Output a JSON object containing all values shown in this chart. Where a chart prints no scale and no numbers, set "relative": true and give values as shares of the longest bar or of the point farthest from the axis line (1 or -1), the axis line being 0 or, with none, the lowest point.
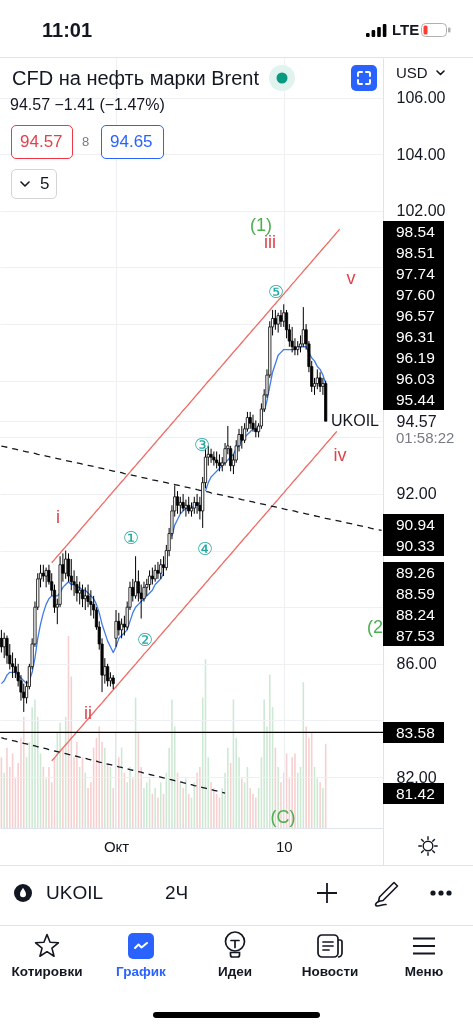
{
  "chart_data": [
    {
      "type": "candlestick",
      "title": "CFD на нефть марки Brent",
      "subtitle": "94.57 −1.41 (−1.47%)",
      "ylabel": "USD",
      "color": "#000000",
      "categories": [
        null,
        null,
        null,
        null,
        null,
        null,
        null,
        null,
        null,
        null,
        null,
        null,
        null,
        null,
        null,
        null,
        null,
        null,
        null,
        null,
        null,
        null,
        null,
        null,
        null,
        null,
        null,
        null,
        null,
        null,
        null,
        null,
        null,
        null,
        null,
        null,
        null,
        null,
        null,
        null,
        null,
        "Окт",
        null,
        null,
        null,
        null,
        null,
        null,
        null,
        null,
        null,
        null,
        null,
        null,
        null,
        null,
        null,
        null,
        null,
        null,
        null,
        null,
        null,
        null,
        null,
        null,
        null,
        null,
        null,
        null,
        null,
        null,
        null,
        null,
        null,
        null,
        null,
        null,
        null,
        null,
        null,
        null,
        null,
        null,
        null,
        null,
        null,
        null,
        null,
        null,
        null,
        null,
        null,
        null,
        null,
        null,
        null,
        null,
        null,
        null,
        null,
        "10",
        null,
        null,
        null,
        null,
        null,
        null,
        null,
        null,
        null,
        null,
        null,
        null,
        null,
        null,
        null,
        null,
        null,
        null,
        null,
        null,
        null,
        null,
        null,
        null,
        null,
        null,
        null,
        null,
        null,
        null,
        null,
        null,
        null,
        null,
        null
      ],
      "ohlc": [
        [
          86.9,
          87.2,
          86.4,
          86.6
        ],
        [
          86.6,
          87.1,
          86.2,
          86.9
        ],
        [
          86.9,
          87.0,
          86.0,
          86.3
        ],
        [
          86.3,
          86.7,
          85.8,
          86.0
        ],
        [
          86.0,
          86.4,
          85.5,
          85.9
        ],
        [
          85.9,
          86.2,
          85.5,
          85.7
        ],
        [
          85.7,
          86.0,
          85.2,
          85.4
        ],
        [
          85.4,
          85.6,
          84.7,
          85.0
        ],
        [
          85.0,
          85.3,
          84.3,
          84.8
        ],
        [
          84.8,
          85.4,
          84.6,
          85.2
        ],
        [
          85.2,
          86.0,
          85.1,
          85.9
        ],
        [
          85.9,
          86.9,
          85.8,
          86.7
        ],
        [
          86.7,
          88.2,
          86.6,
          88.0
        ],
        [
          88.0,
          89.2,
          87.9,
          89.0
        ],
        [
          89.0,
          89.5,
          88.7,
          89.2
        ],
        [
          89.2,
          89.5,
          88.9,
          89.1
        ],
        [
          89.1,
          89.4,
          88.7,
          89.3
        ],
        [
          89.3,
          89.5,
          88.8,
          88.9
        ],
        [
          88.9,
          89.2,
          88.4,
          88.6
        ],
        [
          88.6,
          88.8,
          87.8,
          88.0
        ],
        [
          88.0,
          88.3,
          87.4,
          88.1
        ],
        [
          88.1,
          89.8,
          88.0,
          89.5
        ],
        [
          89.5,
          89.9,
          88.9,
          89.2
        ],
        [
          89.2,
          90.0,
          89.0,
          89.7
        ],
        [
          89.7,
          89.9,
          88.9,
          89.1
        ],
        [
          89.1,
          89.7,
          88.6,
          88.9
        ],
        [
          88.9,
          89.3,
          88.4,
          88.8
        ],
        [
          88.8,
          89.1,
          88.2,
          88.5
        ],
        [
          88.5,
          88.9,
          88.1,
          88.6
        ],
        [
          88.6,
          88.8,
          88.0,
          88.3
        ],
        [
          88.3,
          88.7,
          87.9,
          88.4
        ],
        [
          88.4,
          88.8,
          88.0,
          88.2
        ],
        [
          88.2,
          88.6,
          87.7,
          88.1
        ],
        [
          88.1,
          88.4,
          87.6,
          87.9
        ],
        [
          87.9,
          88.0,
          87.2,
          87.3
        ],
        [
          87.3,
          87.5,
          86.5,
          86.7
        ],
        [
          86.7,
          86.9,
          85.0,
          85.6
        ],
        [
          85.6,
          86.2,
          85.3,
          85.9
        ],
        [
          85.9,
          86.0,
          85.2,
          85.4
        ],
        [
          85.4,
          85.7,
          85.2,
          85.5
        ],
        [
          85.5,
          85.6,
          85.1,
          85.3
        ],
        [
          86.9,
          87.9,
          86.6,
          87.5
        ],
        [
          87.5,
          87.8,
          87.0,
          87.2
        ],
        [
          87.2,
          87.6,
          86.9,
          87.4
        ],
        [
          87.4,
          87.7,
          87.0,
          87.3
        ],
        [
          87.3,
          88.2,
          87.2,
          88.0
        ],
        [
          88.0,
          88.9,
          87.9,
          88.7
        ],
        [
          88.7,
          89.0,
          88.2,
          88.4
        ],
        [
          88.4,
          89.8,
          88.3,
          88.9
        ],
        [
          88.9,
          89.3,
          88.2,
          88.5
        ],
        [
          88.5,
          88.8,
          87.6,
          88.3
        ],
        [
          88.3,
          88.9,
          88.2,
          88.7
        ],
        [
          88.7,
          89.0,
          88.4,
          88.8
        ],
        [
          88.8,
          89.3,
          88.6,
          89.1
        ],
        [
          89.1,
          89.4,
          88.8,
          89.0
        ],
        [
          89.0,
          89.5,
          88.9,
          89.3
        ],
        [
          89.3,
          89.6,
          89.0,
          89.2
        ],
        [
          89.2,
          89.7,
          89.0,
          89.5
        ],
        [
          89.5,
          89.8,
          89.1,
          89.4
        ],
        [
          89.4,
          90.2,
          89.3,
          90.0
        ],
        [
          90.0,
          90.8,
          89.8,
          90.6
        ],
        [
          90.6,
          91.6,
          90.4,
          91.4
        ],
        [
          91.4,
          92.3,
          91.2,
          91.9
        ],
        [
          91.9,
          92.1,
          91.3,
          91.6
        ],
        [
          91.6,
          91.9,
          91.3,
          91.7
        ],
        [
          91.7,
          92.0,
          91.4,
          91.5
        ],
        [
          91.5,
          91.8,
          91.2,
          91.6
        ],
        [
          91.6,
          91.9,
          91.3,
          91.4
        ],
        [
          91.4,
          91.7,
          91.2,
          91.5
        ],
        [
          91.5,
          91.9,
          91.3,
          91.7
        ],
        [
          91.7,
          92.0,
          91.3,
          91.6
        ],
        [
          91.6,
          91.9,
          91.1,
          91.4
        ],
        [
          91.4,
          92.6,
          90.8,
          92.4
        ],
        [
          92.4,
          93.6,
          92.2,
          93.3
        ],
        [
          93.3,
          93.7,
          93.0,
          93.4
        ],
        [
          93.4,
          93.6,
          93.1,
          93.3
        ],
        [
          93.3,
          93.5,
          93.0,
          93.2
        ],
        [
          93.2,
          93.5,
          92.9,
          93.1
        ],
        [
          93.1,
          93.4,
          92.8,
          93.0
        ],
        [
          93.0,
          93.3,
          92.8,
          93.1
        ],
        [
          93.1,
          93.8,
          93.0,
          93.6
        ],
        [
          93.6,
          94.4,
          93.4,
          93.7
        ],
        [
          93.6,
          93.7,
          92.8,
          93.0
        ],
        [
          93.0,
          93.4,
          92.7,
          93.2
        ],
        [
          93.2,
          93.9,
          93.1,
          93.7
        ],
        [
          93.7,
          94.3,
          93.5,
          94.1
        ],
        [
          94.1,
          94.4,
          93.6,
          93.9
        ],
        [
          93.9,
          94.5,
          93.8,
          94.3
        ],
        [
          94.3,
          94.9,
          94.2,
          94.7
        ],
        [
          94.7,
          94.9,
          94.3,
          94.5
        ],
        [
          94.5,
          94.8,
          94.2,
          94.3
        ],
        [
          94.3,
          94.6,
          94.0,
          94.2
        ],
        [
          94.2,
          94.5,
          94.0,
          94.4
        ],
        [
          94.4,
          95.2,
          94.3,
          95.0
        ],
        [
          95.0,
          95.7,
          94.9,
          95.5
        ],
        [
          95.5,
          96.4,
          95.4,
          96.2
        ],
        [
          96.2,
          98.1,
          96.1,
          97.9
        ],
        [
          97.9,
          98.5,
          97.6,
          98.2
        ],
        [
          98.2,
          98.5,
          97.8,
          98.0
        ],
        [
          98.0,
          98.4,
          97.7,
          98.3
        ],
        [
          98.3,
          98.5,
          97.9,
          98.1
        ],
        [
          98.1,
          98.7,
          97.9,
          98.4
        ],
        [
          98.4,
          98.5,
          97.5,
          97.8
        ],
        [
          97.8,
          98.0,
          97.2,
          97.4
        ],
        [
          97.4,
          97.9,
          97.0,
          97.2
        ],
        [
          97.2,
          97.5,
          96.9,
          97.1
        ],
        [
          97.1,
          97.4,
          96.9,
          97.2
        ],
        [
          97.2,
          97.6,
          97.0,
          97.3
        ],
        [
          97.3,
          98.6,
          97.2,
          97.8
        ],
        [
          97.8,
          98.0,
          97.1,
          97.3
        ],
        [
          97.3,
          97.4,
          96.3,
          96.5
        ],
        [
          96.5,
          96.7,
          95.6,
          95.8
        ],
        [
          95.8,
          96.1,
          95.5,
          95.9
        ],
        [
          95.9,
          96.4,
          95.7,
          96.1
        ],
        [
          96.1,
          96.3,
          95.6,
          95.8
        ],
        [
          95.8,
          96.1,
          95.5,
          95.9
        ],
        [
          95.9,
          96.0,
          94.57,
          94.57
        ],
        null,
        null,
        null,
        null,
        null,
        null,
        null,
        null,
        null,
        null,
        null,
        null,
        null,
        null,
        null,
        null,
        null,
        null,
        null,
        null
      ],
      "series": [
        {
          "type": "line",
          "color": "#3f7be6",
          "values": [
            85.3,
            85.4,
            85.6,
            85.7,
            85.7,
            85.7,
            85.6,
            85.5,
            85.4,
            85.3,
            85.4,
            85.7,
            86.2,
            86.9,
            87.4,
            87.8,
            88.1,
            88.3,
            88.4,
            88.4,
            88.4,
            88.5,
            88.7,
            88.8,
            88.9,
            88.8,
            88.8,
            88.7,
            88.7,
            88.6,
            88.6,
            88.5,
            88.4,
            88.3,
            88.1,
            87.8,
            87.4,
            87.1,
            86.8,
            86.6,
            86.4,
            86.6,
            86.9,
            87.0,
            87.1,
            87.2,
            87.5,
            87.8,
            88.0,
            88.1,
            88.2,
            88.3,
            88.4,
            88.5,
            88.6,
            88.8,
            88.9,
            89.0,
            89.2,
            null,
            null,
            90.5,
            90.9,
            91.1,
            91.3,
            91.4,
            91.5,
            91.5,
            91.5,
            91.6,
            91.6,
            91.7,
            null,
            92.1,
            92.4,
            92.6,
            92.7,
            92.8,
            92.9,
            93.0,
            93.1,
            93.2,
            93.3,
            93.4,
            93.6,
            93.7,
            93.9,
            94.0,
            94.1,
            94.2,
            94.3,
            94.3,
            94.4,
            null,
            94.9,
            95.3,
            95.8,
            96.3,
            96.6,
            96.9,
            97.0,
            97.1,
            97.1,
            97.1,
            97.1,
            97.1,
            97.2,
            97.2,
            97.2,
            97.2,
            97.0,
            96.8,
            96.7,
            96.5,
            96.4,
            96.2,
            95.9,
            null,
            null,
            null,
            null,
            null,
            null,
            null,
            null,
            null,
            null,
            null,
            null,
            null,
            null,
            null,
            null,
            null,
            null,
            null,
            null
          ]
        },
        {
          "type": "line",
          "color": "#ee6a63",
          "values": [
            null,
            null,
            null,
            null,
            null,
            null,
            null,
            null,
            null,
            null,
            null,
            null,
            null,
            null,
            null,
            null,
            null,
            null,
            89.57,
            89.68,
            89.8,
            89.91,
            90.03,
            90.14,
            90.25,
            90.37,
            90.48,
            90.6,
            90.71,
            90.83,
            90.94,
            91.06,
            91.17,
            91.28,
            91.4,
            91.51,
            91.63,
            91.74,
            91.86,
            91.97,
            92.09,
            92.2,
            92.31,
            92.43,
            92.54,
            92.66,
            92.77,
            92.89,
            93.0,
            93.12,
            93.23,
            93.34,
            93.46,
            93.57,
            93.69,
            93.8,
            93.92,
            94.03,
            94.15,
            94.26,
            94.37,
            94.49,
            94.6,
            94.72,
            94.83,
            94.95,
            95.06,
            95.17,
            95.29,
            95.4,
            95.52,
            95.63,
            95.75,
            95.86,
            95.98,
            96.09,
            96.2,
            96.32,
            96.43,
            96.55,
            96.66,
            96.78,
            96.89,
            97.01,
            97.12,
            97.23,
            97.35,
            97.46,
            97.58,
            97.69,
            97.81,
            97.92,
            98.03,
            98.15,
            98.26,
            98.38,
            98.49,
            98.61,
            98.72,
            98.84,
            98.95,
            99.06,
            99.18,
            99.29,
            99.41,
            99.52,
            99.64,
            99.75,
            99.87,
            99.98,
            100.09,
            100.21,
            100.32,
            100.44,
            100.55,
            100.67,
            100.78,
            100.89,
            101.01,
            101.12,
            101.24,
            101.35,
            null,
            null,
            null,
            null,
            null,
            null,
            null,
            null,
            null,
            null,
            null,
            null,
            null,
            null,
            null
          ]
        },
        {
          "type": "line",
          "color": "#ee6a63",
          "values": [
            null,
            null,
            null,
            null,
            null,
            null,
            null,
            null,
            null,
            null,
            null,
            null,
            null,
            null,
            null,
            null,
            null,
            null,
            82.57,
            82.68,
            82.8,
            82.91,
            83.03,
            83.14,
            83.25,
            83.37,
            83.48,
            83.6,
            83.71,
            83.82,
            83.94,
            84.05,
            84.17,
            84.28,
            84.4,
            84.51,
            84.62,
            84.74,
            84.85,
            84.97,
            85.08,
            85.19,
            85.31,
            85.42,
            85.54,
            85.65,
            85.77,
            85.88,
            85.99,
            86.11,
            86.22,
            86.34,
            86.45,
            86.56,
            86.68,
            86.79,
            86.91,
            87.02,
            87.14,
            87.25,
            87.36,
            87.48,
            87.59,
            87.71,
            87.82,
            87.93,
            88.05,
            88.16,
            88.28,
            88.39,
            88.5,
            88.62,
            88.73,
            88.85,
            88.96,
            89.08,
            89.19,
            89.3,
            89.42,
            89.53,
            89.65,
            89.76,
            89.87,
            89.99,
            90.1,
            90.22,
            90.33,
            90.45,
            90.56,
            90.67,
            90.79,
            90.9,
            91.02,
            91.13,
            91.24,
            91.36,
            91.47,
            91.59,
            91.7,
            91.81,
            91.93,
            92.04,
            92.16,
            92.27,
            92.39,
            92.5,
            92.61,
            92.73,
            92.84,
            92.96,
            93.07,
            93.18,
            93.3,
            93.41,
            93.53,
            93.64,
            93.76,
            93.87,
            93.98,
            94.1,
            94.21,
            null,
            null,
            null,
            null,
            null,
            null,
            null,
            null,
            null,
            null,
            null,
            null,
            null,
            null,
            null,
            null
          ]
        },
        {
          "type": "line",
          "color": "#131722",
          "line_style": "dashed",
          "values": [
            93.69,
            93.67,
            93.65,
            93.62,
            93.6,
            93.58,
            93.56,
            93.54,
            93.51,
            93.49,
            93.47,
            93.45,
            93.43,
            93.4,
            93.38,
            93.36,
            93.34,
            93.32,
            93.29,
            93.27,
            93.25,
            93.23,
            93.21,
            93.18,
            93.16,
            93.14,
            93.12,
            93.1,
            93.08,
            93.05,
            93.03,
            93.01,
            92.99,
            92.97,
            92.94,
            92.92,
            92.9,
            92.88,
            92.86,
            92.83,
            92.81,
            92.79,
            92.77,
            92.75,
            92.72,
            92.7,
            92.68,
            92.66,
            92.64,
            92.61,
            92.59,
            92.57,
            92.55,
            92.53,
            92.5,
            92.48,
            92.46,
            92.44,
            92.42,
            92.4,
            92.37,
            92.35,
            92.33,
            92.31,
            92.29,
            92.26,
            92.24,
            92.22,
            92.2,
            92.18,
            92.15,
            92.13,
            92.11,
            92.09,
            92.07,
            92.04,
            92.02,
            92.0,
            91.98,
            91.96,
            91.93,
            91.91,
            91.89,
            91.87,
            91.85,
            91.83,
            91.8,
            91.78,
            91.76,
            91.74,
            91.72,
            91.69,
            91.67,
            91.65,
            91.63,
            91.61,
            91.58,
            91.56,
            91.54,
            91.52,
            91.5,
            91.47,
            91.45,
            91.43,
            91.41,
            91.39,
            91.36,
            91.34,
            91.32,
            91.3,
            91.28,
            91.25,
            91.23,
            91.21,
            91.19,
            91.17,
            91.14,
            91.12,
            91.1,
            91.08,
            91.06,
            91.04,
            91.01,
            90.99,
            90.97,
            90.95,
            90.93,
            90.9,
            90.88,
            90.86,
            90.84,
            90.82,
            90.79,
            90.77,
            90.75,
            90.73,
            90.71
          ]
        },
        {
          "type": "line",
          "color": "#131722",
          "line_style": "dashed",
          "values": [
            83.39,
            83.36,
            83.34,
            83.31,
            83.29,
            83.27,
            83.24,
            83.22,
            83.19,
            83.17,
            83.14,
            83.12,
            83.1,
            83.07,
            83.05,
            83.02,
            83.0,
            82.97,
            82.95,
            82.92,
            82.9,
            82.88,
            82.85,
            82.83,
            82.8,
            82.78,
            82.75,
            82.73,
            82.7,
            82.68,
            82.66,
            82.63,
            82.61,
            82.58,
            82.56,
            82.53,
            82.51,
            82.48,
            82.46,
            82.44,
            82.41,
            82.39,
            82.36,
            82.34,
            82.31,
            82.29,
            82.26,
            82.24,
            82.22,
            82.19,
            82.17,
            82.14,
            82.12,
            82.09,
            82.07,
            82.04,
            82.02,
            82.0,
            81.97,
            81.95,
            81.92,
            81.9,
            81.87,
            81.85,
            81.83,
            81.8,
            81.78,
            81.75,
            81.73,
            81.7,
            81.68,
            81.65,
            81.63,
            81.61,
            81.58,
            81.56,
            81.53,
            81.51,
            81.48,
            81.46,
            81.43,
            null,
            null,
            null,
            null,
            null,
            null,
            null,
            null,
            null,
            null,
            null,
            null,
            null,
            null,
            null,
            null,
            null,
            null,
            null,
            null,
            null,
            null,
            null,
            null,
            null,
            null,
            null,
            null,
            null,
            null,
            null,
            null,
            null,
            null,
            null,
            null,
            null,
            null,
            null,
            null,
            null,
            null,
            null,
            null,
            null,
            null,
            null,
            null,
            null,
            null,
            null,
            null,
            null,
            null,
            null,
            null
          ]
        }
      ],
      "ylim": [
        80.2,
        107.4
      ],
      "yticks": [
        {
          "value": 82,
          "label": "82.00"
        },
        {
          "value": 84,
          "label": null
        },
        {
          "value": 86,
          "label": "86.00"
        },
        {
          "value": 88,
          "label": null
        },
        {
          "value": 90,
          "label": null
        },
        {
          "value": 92,
          "label": "92.00"
        },
        {
          "value": 94,
          "label": null
        },
        {
          "value": 94.57,
          "label": "94.57"
        },
        {
          "value": 96,
          "label": null
        },
        {
          "value": 98,
          "label": null
        },
        {
          "value": 100,
          "label": null
        },
        {
          "value": 102,
          "label": "102.00"
        },
        {
          "value": 104,
          "label": "104.00"
        },
        {
          "value": 106,
          "label": "106.00"
        }
      ],
      "grid": true,
      "ref_lines": [
        {
          "axis": "y",
          "value": 83.58,
          "label": "83.58",
          "color": "#000000"
        }
      ],
      "annotations": [
        "11:01",
        "LTE",
        "94.57",
        "8",
        "94.65",
        "5",
        "01:58:22",
        "UKOIL",
        "2Ч",
        "Котировки",
        "График",
        "Идеи",
        "Новости",
        "Меню",
        "i",
        "ii",
        "iii",
        "iv",
        "v",
        "①",
        "②",
        "③",
        "④",
        "⑤",
        "(1)",
        "(2",
        "(C)",
        "UKOIL",
        "98.54",
        "98.51",
        "97.74",
        "97.60",
        "96.57",
        "96.31",
        "96.19",
        "96.03",
        "95.44",
        "90.94",
        "90.33",
        "89.26",
        "88.59",
        "88.24",
        "87.53",
        "81.42"
      ]
    },
    {
      "type": "bar",
      "relative": true,
      "categories": [
        null,
        null,
        null,
        null,
        null,
        null,
        null,
        null,
        null,
        null,
        null,
        null,
        null,
        null,
        null,
        null,
        null,
        null,
        null,
        null,
        null,
        null,
        null,
        null,
        null,
        null,
        null,
        null,
        null,
        null,
        null,
        null,
        null,
        null,
        null,
        null,
        null,
        null,
        null,
        null,
        null,
        null,
        null,
        null,
        null,
        null,
        null,
        null,
        null,
        null,
        null,
        null,
        null,
        null,
        null,
        null,
        null,
        null,
        null,
        null,
        null,
        null,
        null,
        null,
        null,
        null,
        null,
        null,
        null,
        null,
        null,
        null,
        null,
        null,
        null,
        null,
        null,
        null,
        null,
        null,
        null,
        null,
        null,
        null,
        null,
        null,
        null,
        null,
        null,
        null,
        null,
        null,
        null,
        null,
        null,
        null,
        null,
        null,
        null,
        null,
        null,
        null,
        null,
        null,
        null,
        null,
        null,
        null,
        null,
        null,
        null,
        null,
        null,
        null,
        null,
        null,
        null,
        null,
        null,
        null,
        null,
        null,
        null,
        null,
        null,
        null,
        null,
        null,
        null,
        null,
        null,
        null,
        null,
        null,
        null,
        null,
        null
      ],
      "values": [
        0.37,
        0.29,
        0.42,
        0.32,
        0.39,
        0.26,
        0.34,
        0.47,
        0.58,
        0.37,
        0.45,
        0.63,
        0.67,
        0.58,
        0.39,
        0.32,
        0.26,
        0.32,
        0.24,
        0.37,
        0.5,
        0.55,
        0.42,
        0.58,
        1,
        0.79,
        0.37,
        0.45,
        0.32,
        0.37,
        0.29,
        0.21,
        0.24,
        0.42,
        0.47,
        0.53,
        0.45,
        0.42,
        0.34,
        0.32,
        0.21,
        0.5,
        0.37,
        0.42,
        0.29,
        0.24,
        0.32,
        0.26,
        0.68,
        0.5,
        0.32,
        0.21,
        0.24,
        0.26,
        0.18,
        0.21,
        0.16,
        0.24,
        0.18,
        0.29,
        0.42,
        0.67,
        0.53,
        0.29,
        0.24,
        0.21,
        0.26,
        0.18,
        0.16,
        0.24,
        0.29,
        0.32,
        0.68,
        0.88,
        0.37,
        0.24,
        0.21,
        0.18,
        0.16,
        0.21,
        0.29,
        0.42,
        0.34,
        0.67,
        0.47,
        0.37,
        0.26,
        0.24,
        0.32,
        0.21,
        0.18,
        0.16,
        0.21,
        0.37,
        0.67,
        0.53,
        0.8,
        0.63,
        0.42,
        0.32,
        0.24,
        0.29,
        0.39,
        0.26,
        0.37,
        0.39,
        0.29,
        0.32,
        0.76,
        0.53,
        0.47,
        0.5,
        0.32,
        0.26,
        0.24,
        0.21,
        0.44,
        null,
        null,
        null,
        null,
        null,
        null,
        null,
        null,
        null,
        null,
        null,
        null,
        null,
        null,
        null,
        null,
        null,
        null,
        null,
        null
      ],
      "colors": [
        "#f6d0d0",
        "#cde9d3",
        "#f6d0d0",
        "#f6d0d0",
        "#f6d0d0",
        "#f6d0d0",
        "#f6d0d0",
        "#f6d0d0",
        "#f6d0d0",
        "#cde9d3",
        "#cde9d3",
        "#cde9d3",
        "#cde9d3",
        "#cde9d3",
        "#cde9d3",
        "#f6d0d0",
        "#cde9d3",
        "#f6d0d0",
        "#f6d0d0",
        "#f6d0d0",
        "#cde9d3",
        "#cde9d3",
        "#f6d0d0",
        "#cde9d3",
        "#f6d0d0",
        "#f6d0d0",
        "#f6d0d0",
        "#f6d0d0",
        "#cde9d3",
        "#f6d0d0",
        "#cde9d3",
        "#f6d0d0",
        "#f6d0d0",
        "#f6d0d0",
        "#f6d0d0",
        "#f6d0d0",
        "#f6d0d0",
        "#cde9d3",
        "#f6d0d0",
        "#cde9d3",
        "#f6d0d0",
        "#cde9d3",
        "#f6d0d0",
        "#cde9d3",
        "#f6d0d0",
        "#cde9d3",
        "#cde9d3",
        "#f6d0d0",
        "#cde9d3",
        "#f6d0d0",
        "#f6d0d0",
        "#cde9d3",
        "#cde9d3",
        "#cde9d3",
        "#f6d0d0",
        "#cde9d3",
        "#f6d0d0",
        "#cde9d3",
        "#f6d0d0",
        "#cde9d3",
        "#cde9d3",
        "#cde9d3",
        "#cde9d3",
        "#f6d0d0",
        "#cde9d3",
        "#f6d0d0",
        "#cde9d3",
        "#f6d0d0",
        "#cde9d3",
        "#cde9d3",
        "#f6d0d0",
        "#f6d0d0",
        "#cde9d3",
        "#cde9d3",
        "#cde9d3",
        "#f6d0d0",
        "#f6d0d0",
        "#f6d0d0",
        "#f6d0d0",
        "#cde9d3",
        "#cde9d3",
        "#cde9d3",
        "#f6d0d0",
        "#cde9d3",
        "#cde9d3",
        "#cde9d3",
        "#f6d0d0",
        "#cde9d3",
        "#cde9d3",
        "#f6d0d0",
        "#f6d0d0",
        "#f6d0d0",
        "#cde9d3",
        "#cde9d3",
        "#cde9d3",
        "#cde9d3",
        "#cde9d3",
        "#cde9d3",
        "#f6d0d0",
        "#cde9d3",
        "#f6d0d0",
        "#cde9d3",
        "#f6d0d0",
        "#f6d0d0",
        "#f6d0d0",
        "#f6d0d0",
        "#cde9d3",
        "#cde9d3",
        "#cde9d3",
        "#f6d0d0",
        "#f6d0d0",
        "#f6d0d0",
        "#cde9d3",
        "#cde9d3",
        "#f6d0d0",
        "#cde9d3",
        "#f6d0d0",
        null,
        null,
        null,
        null,
        null,
        null,
        null,
        null,
        null,
        null,
        null,
        null,
        null,
        null,
        null,
        null,
        null,
        null,
        null,
        null
      ]
    }
  ]
}
